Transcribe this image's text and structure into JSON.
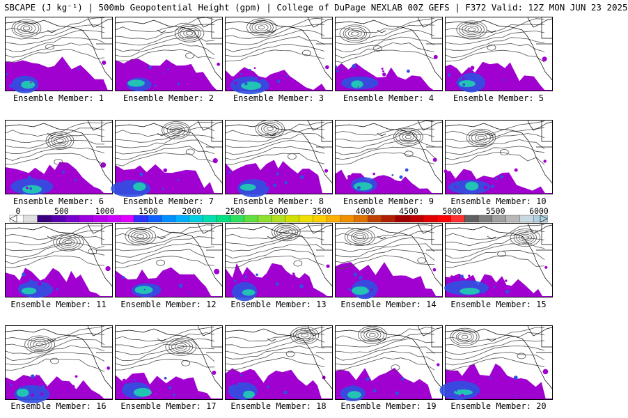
{
  "header": {
    "title": "SBCAPE (J kg⁻¹) | 500mb Geopotential Height (gpm) | College of DuPage NEXLAB 00Z GEFS | F372 Valid: 12Z MON JUN 23 2025"
  },
  "colorbar": {
    "ticks": [
      "0",
      "500",
      "1000",
      "1500",
      "2000",
      "2500",
      "3000",
      "3500",
      "4000",
      "4500",
      "5000",
      "5500",
      "6000"
    ],
    "colors": [
      "#ffffff",
      "#e0e0e0",
      "#3a0080",
      "#5800b0",
      "#7a00d0",
      "#9a00e0",
      "#b800ee",
      "#cc00ff",
      "#e000ff",
      "#3030ff",
      "#1060ff",
      "#0090ff",
      "#00b0ff",
      "#00d0e0",
      "#00e0b0",
      "#00e080",
      "#30e060",
      "#60e040",
      "#90e030",
      "#b0e020",
      "#d0e000",
      "#f0e000",
      "#ffd000",
      "#ffb000",
      "#f09000",
      "#e07000",
      "#c04000",
      "#b02000",
      "#a00000",
      "#c00000",
      "#e00000",
      "#ff0000",
      "#ff3030",
      "#606060",
      "#808080",
      "#a0a0a0",
      "#b8b8b8",
      "#c8d8e0",
      "#b0d0e0"
    ]
  },
  "members": [
    {
      "label": "Ensemble Member: 1"
    },
    {
      "label": "Ensemble Member: 2"
    },
    {
      "label": "Ensemble Member: 3"
    },
    {
      "label": "Ensemble Member: 4"
    },
    {
      "label": "Ensemble Member: 5"
    },
    {
      "label": "Ensemble Member: 6"
    },
    {
      "label": "Ensemble Member: 7"
    },
    {
      "label": "Ensemble Member: 8"
    },
    {
      "label": "Ensemble Member: 9"
    },
    {
      "label": "Ensemble Member: 10"
    },
    {
      "label": "Ensemble Member: 11"
    },
    {
      "label": "Ensemble Member: 12"
    },
    {
      "label": "Ensemble Member: 13"
    },
    {
      "label": "Ensemble Member: 14"
    },
    {
      "label": "Ensemble Member: 15"
    },
    {
      "label": "Ensemble Member: 16"
    },
    {
      "label": "Ensemble Member: 17"
    },
    {
      "label": "Ensemble Member: 18"
    },
    {
      "label": "Ensemble Member: 19"
    },
    {
      "label": "Ensemble Member: 20"
    }
  ],
  "palette": {
    "contour": "#505050",
    "coast": "#000000",
    "cape_low": "#a000d0",
    "cape_mid": "#3050e0",
    "cape_high": "#20d0b0"
  }
}
